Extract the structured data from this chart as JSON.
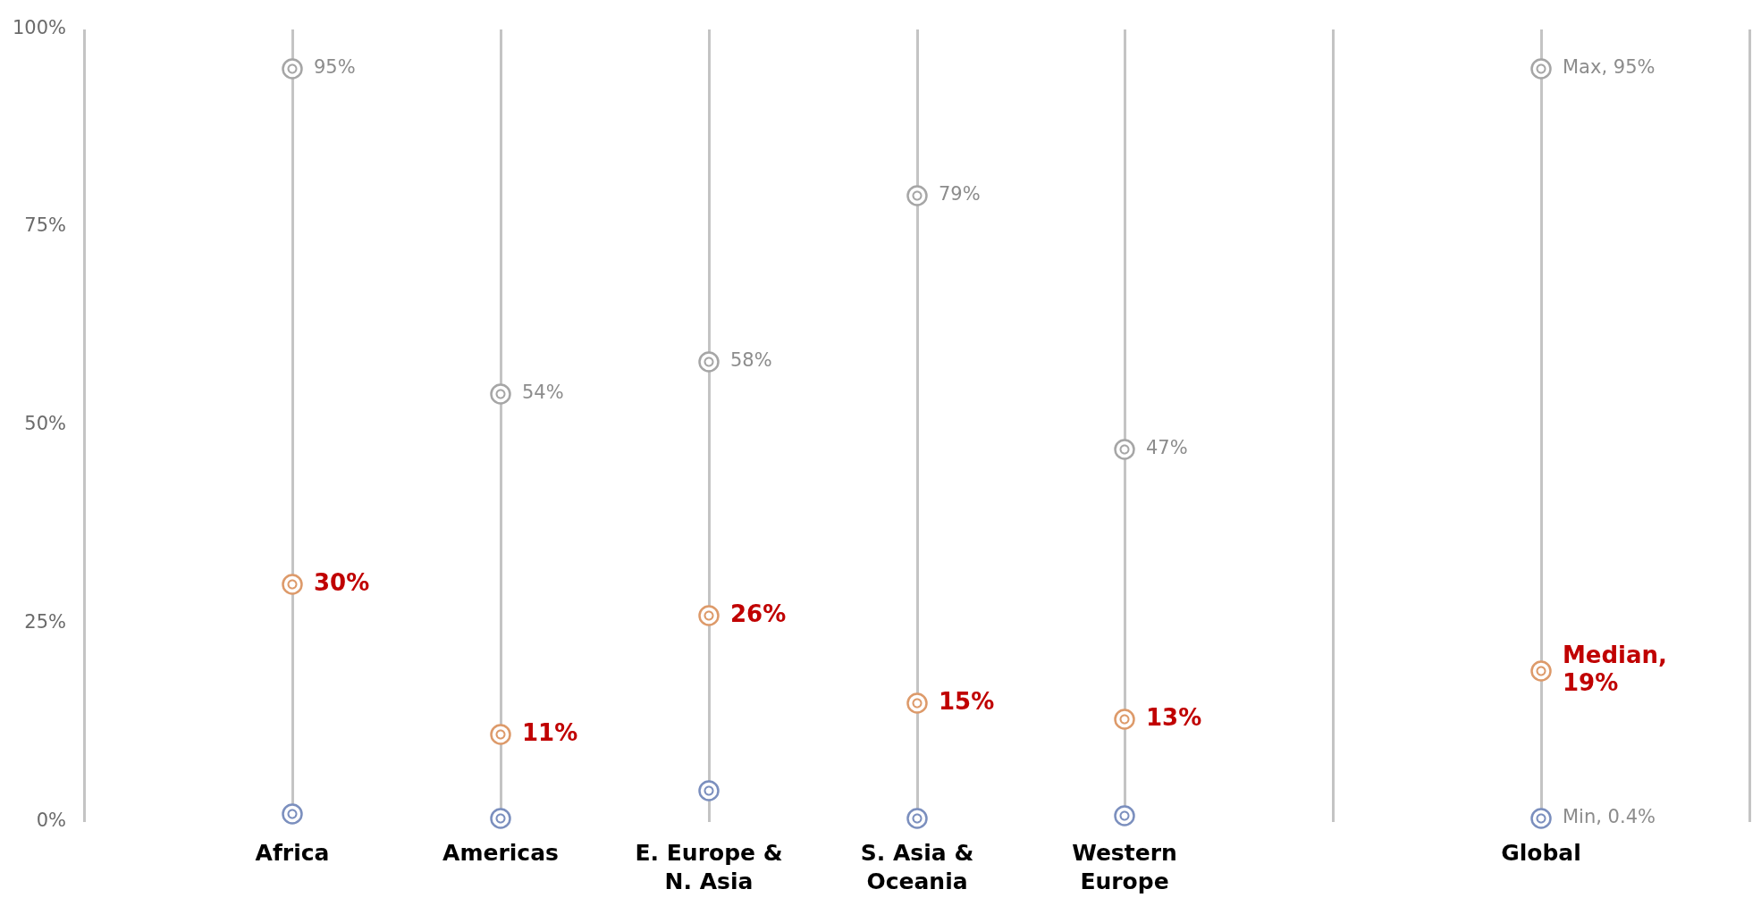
{
  "chart_data": {
    "type": "scatter",
    "categories": [
      null,
      "Africa",
      "Americas",
      "E. Europe & N. Asia",
      "S. Asia & Oceania",
      "Western Europe",
      null,
      "Global",
      null
    ],
    "series": [
      {
        "color": "#a6a6a6",
        "values": [
          null,
          95,
          54,
          58,
          79,
          47,
          null,
          95,
          null
        ],
        "value_labels": [
          null,
          "95%",
          "54%",
          "58%",
          "79%",
          "47%",
          null,
          "Max, 95%",
          null
        ]
      },
      {
        "color": "#dd9a6a",
        "values": [
          null,
          30,
          11,
          26,
          15,
          13,
          null,
          19,
          null
        ],
        "value_labels": [
          null,
          "30%",
          "11%",
          "26%",
          "15%",
          "13%",
          null,
          "Median, 19%",
          null
        ]
      },
      {
        "color": "#7b8fbe",
        "values": [
          null,
          1.0,
          0.5,
          4.0,
          0.4,
          0.8,
          null,
          0.4,
          null
        ],
        "value_labels": [
          null,
          null,
          null,
          null,
          null,
          null,
          null,
          "Min, 0.4%",
          null
        ]
      }
    ],
    "ylim": [
      0,
      100
    ],
    "yticks": [
      {
        "value": 0,
        "label": "0%"
      },
      {
        "value": 25,
        "label": "25%"
      },
      {
        "value": 50,
        "label": "50%"
      },
      {
        "value": 75,
        "label": "75%"
      },
      {
        "value": 100,
        "label": "100%"
      }
    ],
    "grid": "x",
    "marker": "circle"
  }
}
